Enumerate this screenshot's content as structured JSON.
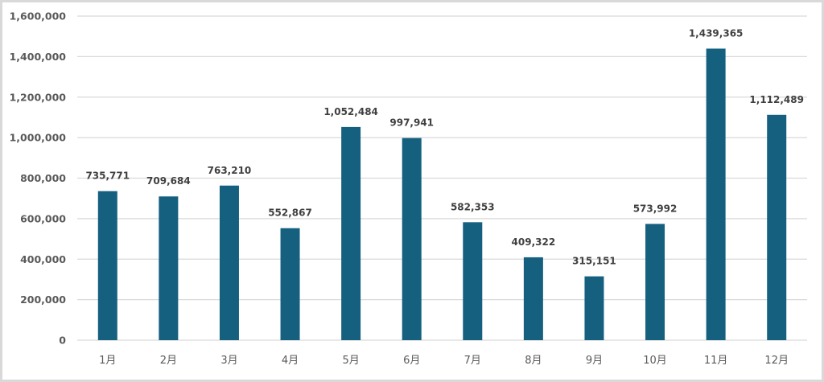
{
  "chart_data": {
    "type": "bar",
    "title": "",
    "xlabel": "",
    "ylabel": "",
    "categories": [
      "1月",
      "2月",
      "3月",
      "4月",
      "5月",
      "6月",
      "7月",
      "8月",
      "9月",
      "10月",
      "11月",
      "12月"
    ],
    "values": [
      735771,
      709684,
      763210,
      552867,
      1052484,
      997941,
      582353,
      409322,
      315151,
      573992,
      1439365,
      1112489
    ],
    "data_labels": [
      "735,771",
      "709,684",
      "763,210",
      "552,867",
      "1,052,484",
      "997,941",
      "582,353",
      "409,322",
      "315,151",
      "573,992",
      "1,439,365",
      "1,112,489"
    ],
    "ylim": [
      0,
      1600000
    ],
    "yticks": [
      0,
      200000,
      400000,
      600000,
      800000,
      1000000,
      1200000,
      1400000,
      1600000
    ],
    "ytick_labels": [
      "0",
      "200,000",
      "400,000",
      "600,000",
      "800,000",
      "1,000,000",
      "1,200,000",
      "1,400,000",
      "1,600,000"
    ],
    "grid": true,
    "legend": "none",
    "colors": {
      "bar": "#16607f",
      "grid": "#d9d9d9",
      "text": "#595959",
      "label": "#404040"
    }
  }
}
